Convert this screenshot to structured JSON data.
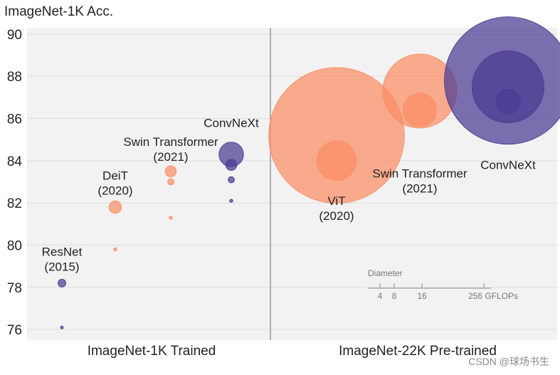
{
  "chart_data": {
    "type": "scatter",
    "title": "ImageNet-1K Acc.",
    "ylabel": "ImageNet-1K Acc.",
    "ylim": [
      75.5,
      90.3
    ],
    "yticks": [
      76,
      78,
      80,
      82,
      84,
      86,
      88,
      90
    ],
    "grid": true,
    "sections": [
      "ImageNet-1K Trained",
      "ImageNet-22K Pre-trained"
    ],
    "size_legend": {
      "title": "Diameter",
      "ticks": [
        "4",
        "8",
        "16",
        "256 GFLOPs"
      ]
    },
    "series": [
      {
        "name": "ResNet",
        "section": 0,
        "color": "#4b3a93",
        "points": [
          {
            "acc": 76.1,
            "d": 4
          },
          {
            "acc": 78.2,
            "d": 11
          }
        ]
      },
      {
        "name": "DeiT",
        "section": 0,
        "color": "#fb8e65",
        "points": [
          {
            "acc": 79.8,
            "d": 4.6
          },
          {
            "acc": 81.8,
            "d": 17.5
          }
        ]
      },
      {
        "name": "Swin Transformer",
        "section": 0,
        "color": "#fb8e65",
        "points": [
          {
            "acc": 81.3,
            "d": 4.5
          },
          {
            "acc": 83.0,
            "d": 8.7
          },
          {
            "acc": 83.5,
            "d": 15.4
          }
        ]
      },
      {
        "name": "ConvNeXt",
        "section": 0,
        "color": "#4b3a93",
        "points": [
          {
            "acc": 82.1,
            "d": 4.5
          },
          {
            "acc": 83.1,
            "d": 8.7
          },
          {
            "acc": 83.8,
            "d": 15.4
          },
          {
            "acc": 84.3,
            "d": 34.4
          }
        ]
      },
      {
        "name": "ViT",
        "section": 1,
        "color": "#fb8e65",
        "points": [
          {
            "acc": 84.0,
            "d": 55.5
          },
          {
            "acc": 85.2,
            "d": 190.7
          }
        ]
      },
      {
        "name": "Swin Transformer",
        "section": 1,
        "color": "#fb8e65",
        "points": [
          {
            "acc": 86.4,
            "d": 47
          },
          {
            "acc": 87.3,
            "d": 103.9
          }
        ]
      },
      {
        "name": "ConvNeXt",
        "section": 1,
        "color": "#4b3a93",
        "points": [
          {
            "acc": 86.8,
            "d": 34.4
          },
          {
            "acc": 87.5,
            "d": 101
          },
          {
            "acc": 87.8,
            "d": 179
          }
        ]
      }
    ],
    "annotations": [
      {
        "lines": [
          "ResNet",
          "(2015)"
        ],
        "acc": 79.5,
        "series": 0
      },
      {
        "lines": [
          "DeiT",
          "(2020)"
        ],
        "acc": 83.1,
        "series": 1
      },
      {
        "lines": [
          "Swin Transformer",
          "(2021)"
        ],
        "acc": 84.7,
        "series": 2
      },
      {
        "lines": [
          "ConvNeXt"
        ],
        "acc": 85.6,
        "series": 3
      },
      {
        "lines": [
          "ViT",
          "(2020)"
        ],
        "acc": 81.9,
        "series": 4
      },
      {
        "lines": [
          "Swin Transformer",
          "(2021)"
        ],
        "acc": 83.2,
        "series": 5
      },
      {
        "lines": [
          "ConvNeXt"
        ],
        "acc": 83.6,
        "series": 6
      }
    ]
  },
  "watermark": "CSDN @球场书生"
}
